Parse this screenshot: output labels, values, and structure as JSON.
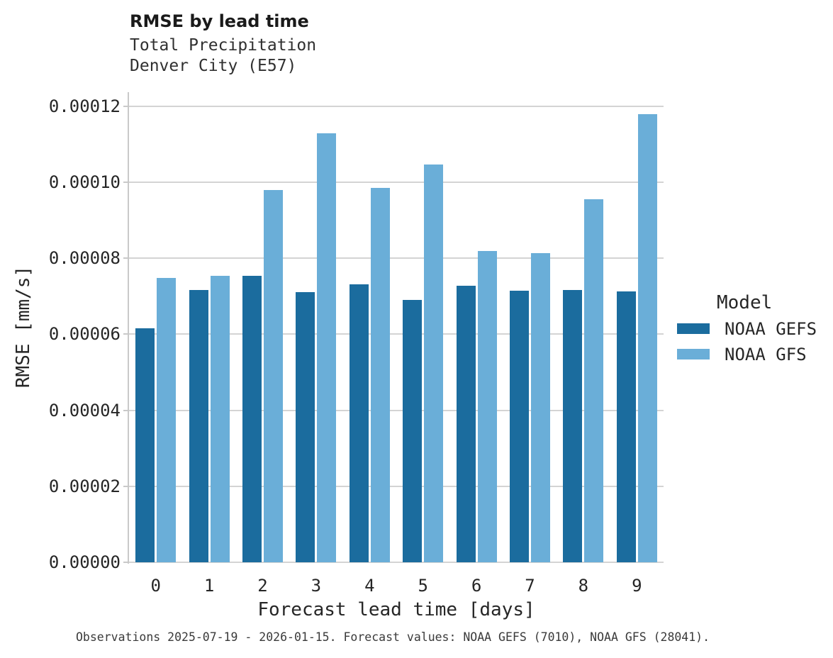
{
  "title": "RMSE by lead time",
  "subtitle_line1": "Total Precipitation",
  "subtitle_line2": "Denver City (E57)",
  "caption": "Observations 2025-07-19 - 2026-01-15. Forecast values: NOAA GEFS (7010), NOAA GFS (28041).",
  "legend": {
    "title": "Model",
    "position": "right"
  },
  "chart_data": {
    "type": "bar",
    "title": "RMSE by lead time",
    "subtitle": "Total Precipitation — Denver City (E57)",
    "xlabel": "Forecast lead time [days]",
    "ylabel": "RMSE [mm/s]",
    "categories": [
      "0",
      "1",
      "2",
      "3",
      "4",
      "5",
      "6",
      "7",
      "8",
      "9"
    ],
    "series": [
      {
        "name": "NOAA GEFS",
        "color": "#1b6c9e",
        "values": [
          6.15e-05,
          7.16e-05,
          7.54e-05,
          7.11e-05,
          7.31e-05,
          6.91e-05,
          7.28e-05,
          7.15e-05,
          7.16e-05,
          7.12e-05
        ]
      },
      {
        "name": "NOAA GFS",
        "color": "#6aaed8",
        "values": [
          7.48e-05,
          7.53e-05,
          9.8e-05,
          0.0001128,
          9.86e-05,
          0.0001046,
          8.19e-05,
          8.14e-05,
          9.55e-05,
          0.000118
        ]
      }
    ],
    "ylim": [
      0,
      0.000124
    ],
    "ytick_labels": [
      "0.00000",
      "0.00002",
      "0.00004",
      "0.00006",
      "0.00008",
      "0.00010",
      "0.00012"
    ],
    "ytick_values": [
      0,
      2e-05,
      4e-05,
      6e-05,
      8e-05,
      0.0001,
      0.00012
    ],
    "grid": true,
    "colors": {
      "gridline": "#d4d4d4",
      "axis_line": "#c9c9c9",
      "text": "#262626"
    }
  }
}
